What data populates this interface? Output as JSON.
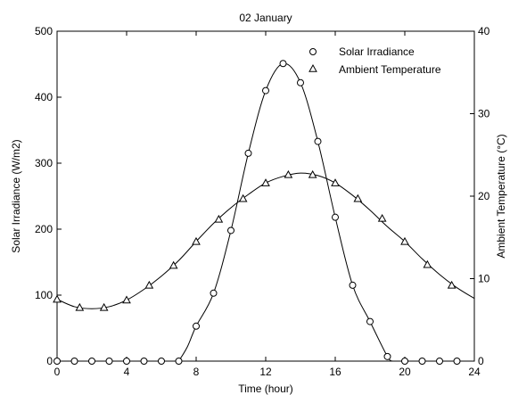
{
  "chart_data": {
    "type": "line",
    "title": "02 January",
    "xlabel": "Time (hour)",
    "ylabel_left": "Solar Irradiance (W/m2)",
    "ylabel_right": "Ambient Temperature (°C)",
    "xlim": [
      0,
      24
    ],
    "ylim_left": [
      0,
      500
    ],
    "ylim_right": [
      0,
      40
    ],
    "x_ticks": [
      "0",
      "4",
      "8",
      "12",
      "16",
      "20",
      "24"
    ],
    "y_ticks_left": [
      "0",
      "100",
      "200",
      "300",
      "400",
      "500"
    ],
    "y_ticks_right": [
      "0",
      "10",
      "20",
      "30",
      "40"
    ],
    "grid": false,
    "legend_position": "top-right",
    "series": [
      {
        "name": "Solar Irradiance",
        "axis": "left",
        "marker": "circle",
        "points": [
          [
            0,
            0
          ],
          [
            1,
            0
          ],
          [
            2,
            0
          ],
          [
            3,
            0
          ],
          [
            4,
            0
          ],
          [
            5,
            0
          ],
          [
            6,
            0
          ],
          [
            7,
            0
          ],
          [
            8,
            53
          ],
          [
            9,
            103
          ],
          [
            10,
            198
          ],
          [
            11,
            315
          ],
          [
            12,
            410
          ],
          [
            13,
            451
          ],
          [
            14,
            422
          ],
          [
            15,
            333
          ],
          [
            16,
            218
          ],
          [
            17,
            115
          ],
          [
            18,
            60
          ],
          [
            19,
            7
          ],
          [
            20,
            0
          ],
          [
            21,
            0
          ],
          [
            22,
            0
          ],
          [
            23,
            0
          ]
        ],
        "curve": [
          [
            0,
            0
          ],
          [
            7,
            0
          ],
          [
            7.5,
            22
          ],
          [
            8,
            53
          ],
          [
            9,
            103
          ],
          [
            10,
            198
          ],
          [
            11,
            315
          ],
          [
            12,
            410
          ],
          [
            13,
            451
          ],
          [
            14,
            422
          ],
          [
            15,
            333
          ],
          [
            16,
            218
          ],
          [
            17,
            115
          ],
          [
            18,
            60
          ],
          [
            19,
            7
          ],
          [
            19.3,
            0
          ],
          [
            24,
            0
          ]
        ]
      },
      {
        "name": "Ambient Temperature",
        "axis": "right",
        "marker": "triangle",
        "points": [
          [
            0,
            7.5
          ],
          [
            1.3,
            6.5
          ],
          [
            2.7,
            6.5
          ],
          [
            4,
            7.4
          ],
          [
            5.3,
            9.2
          ],
          [
            6.7,
            11.6
          ],
          [
            8,
            14.5
          ],
          [
            9.3,
            17.2
          ],
          [
            10.7,
            19.7
          ],
          [
            12,
            21.6
          ],
          [
            13.3,
            22.6
          ],
          [
            14.7,
            22.6
          ],
          [
            16,
            21.6
          ],
          [
            17.3,
            19.7
          ],
          [
            18.7,
            17.3
          ],
          [
            20,
            14.5
          ],
          [
            21.3,
            11.7
          ],
          [
            22.7,
            9.2
          ]
        ],
        "curve": [
          [
            0,
            7.5
          ],
          [
            1,
            6.6
          ],
          [
            2,
            6.35
          ],
          [
            3,
            6.6
          ],
          [
            4,
            7.4
          ],
          [
            5,
            8.7
          ],
          [
            6,
            10.3
          ],
          [
            7,
            12.2
          ],
          [
            8,
            14.5
          ],
          [
            9,
            16.7
          ],
          [
            10,
            18.6
          ],
          [
            11,
            20.2
          ],
          [
            12,
            21.6
          ],
          [
            13,
            22.4
          ],
          [
            14,
            22.8
          ],
          [
            15,
            22.5
          ],
          [
            16,
            21.6
          ],
          [
            17,
            20.1
          ],
          [
            18,
            18.3
          ],
          [
            19,
            16.3
          ],
          [
            20,
            14.5
          ],
          [
            21,
            12.4
          ],
          [
            22,
            10.5
          ],
          [
            23,
            8.9
          ],
          [
            24,
            7.6
          ]
        ]
      }
    ]
  }
}
